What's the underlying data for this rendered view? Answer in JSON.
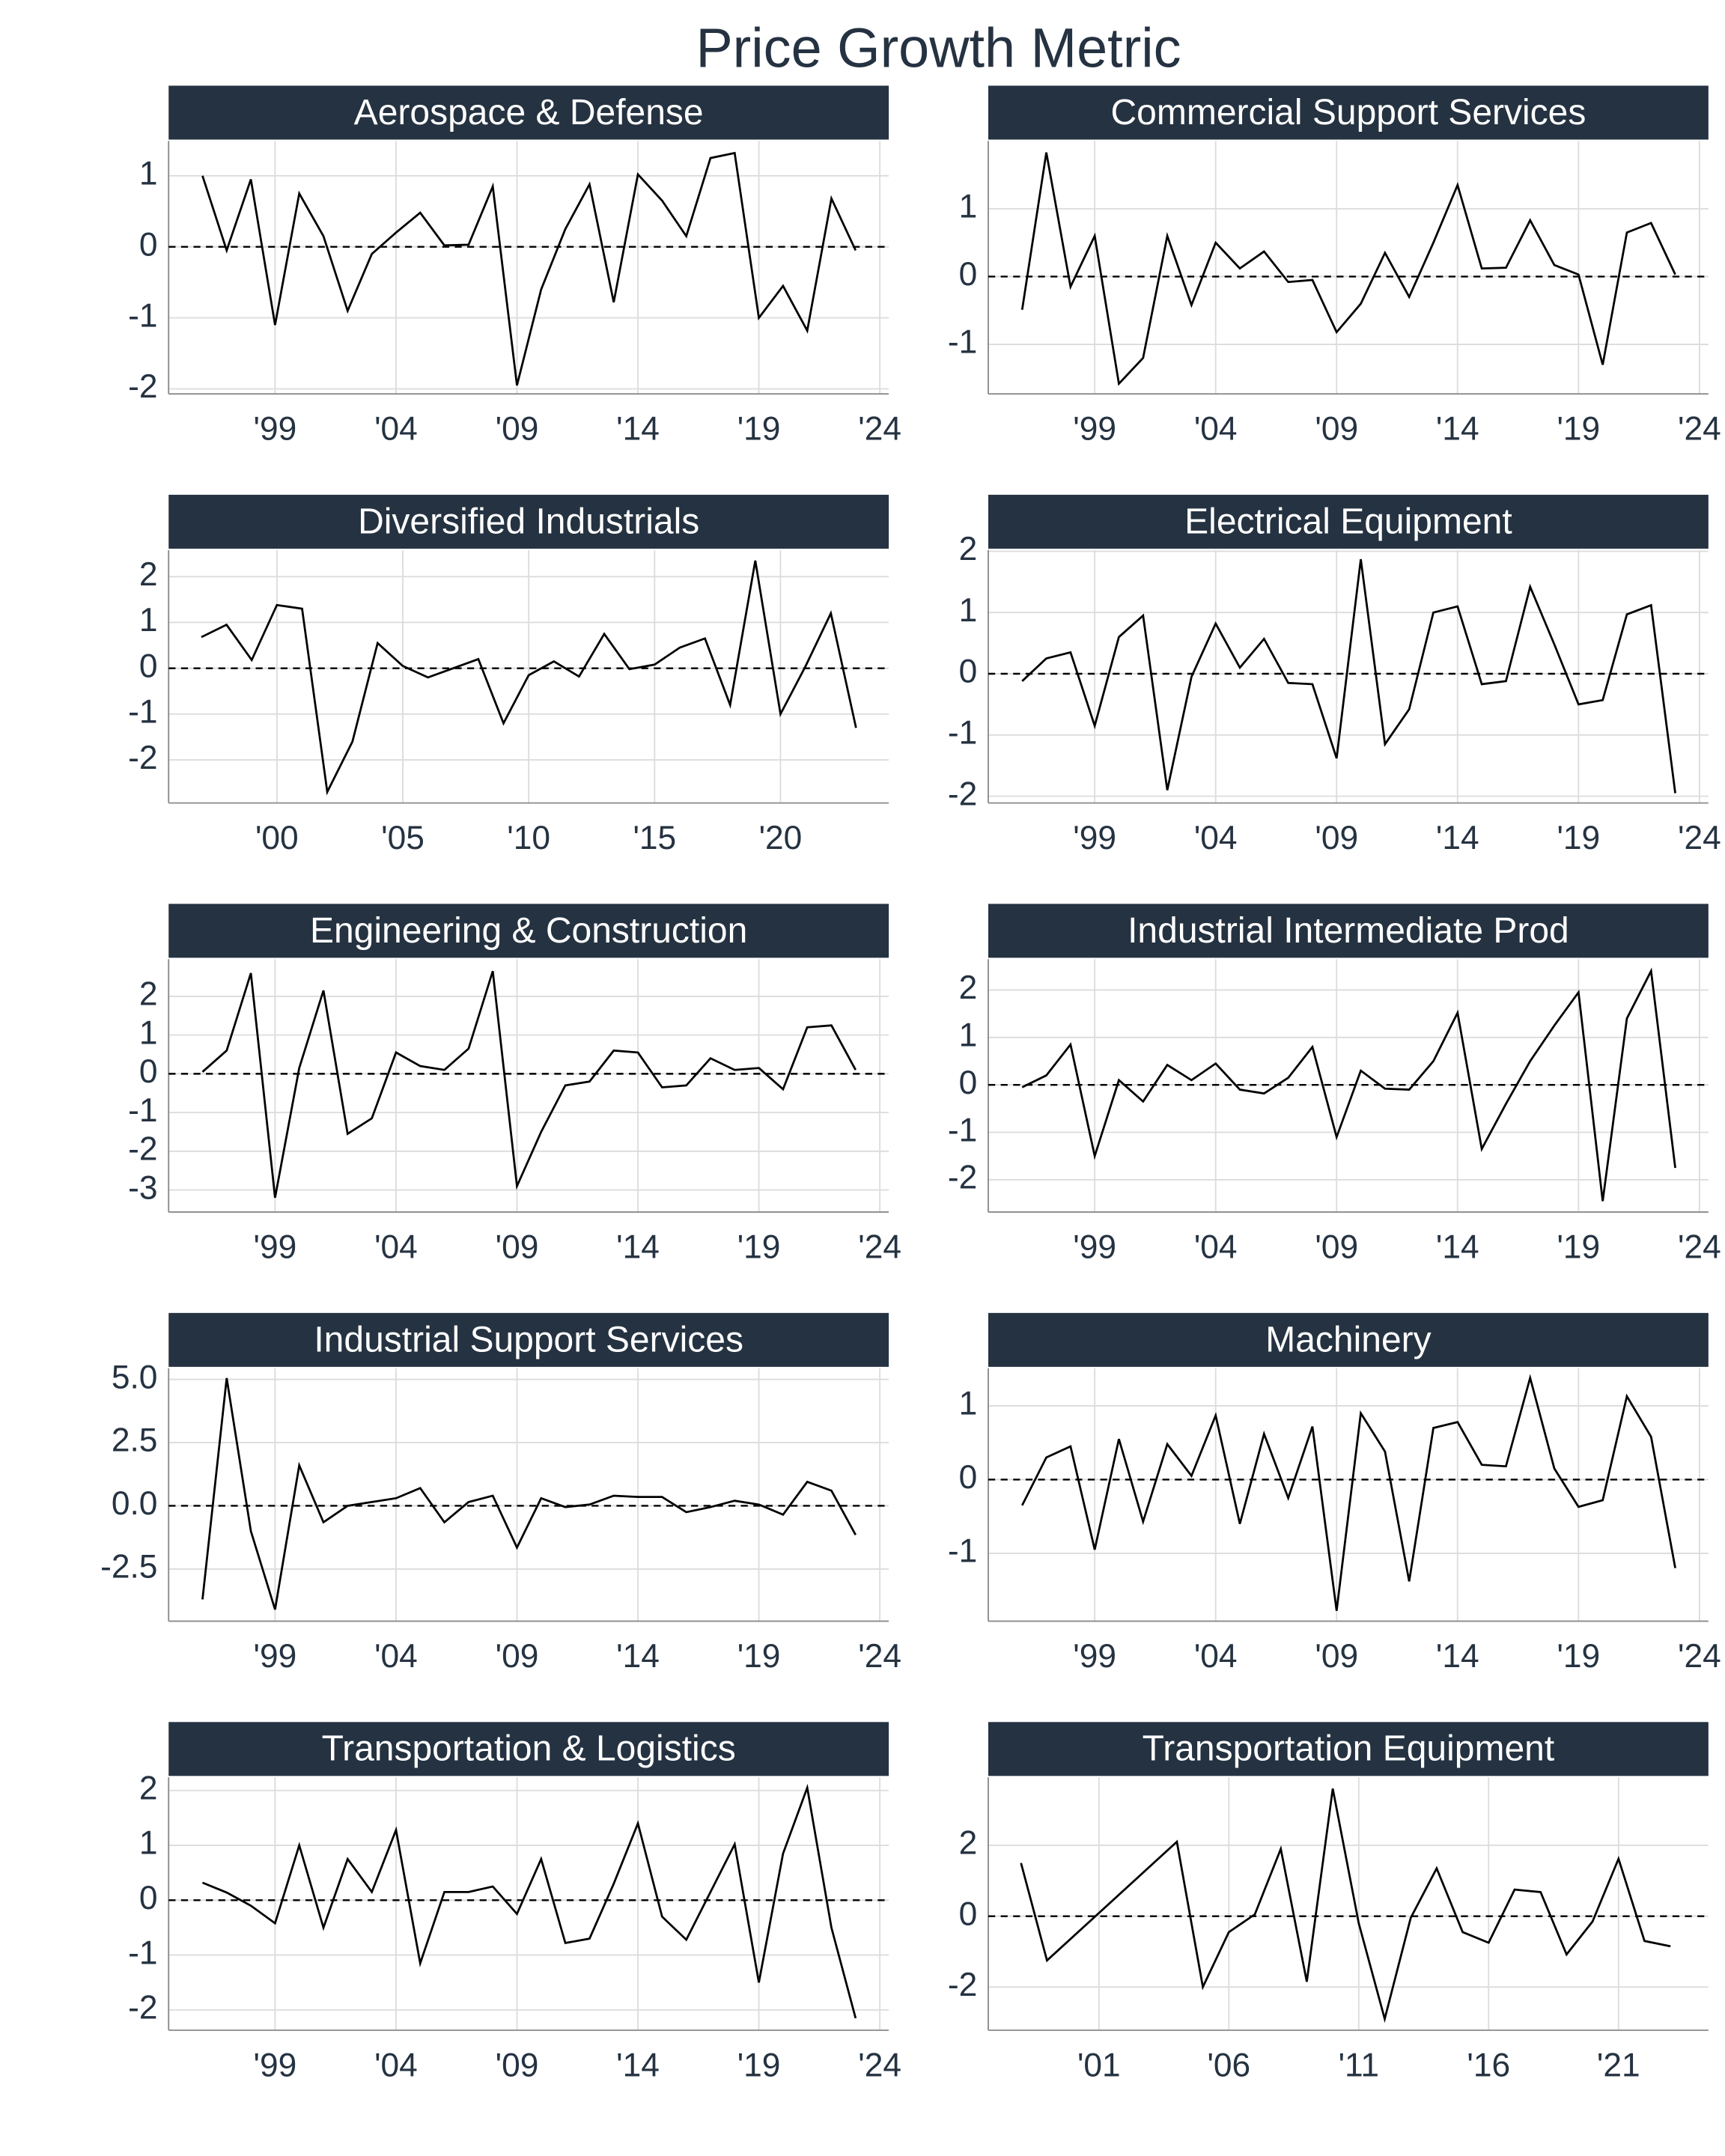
{
  "title": "Price Growth Metric",
  "chart_data": [
    {
      "type": "line",
      "title": "Aerospace & Defense",
      "color": "#000000",
      "hline": 0,
      "x": [
        1996,
        1997,
        1998,
        1999,
        2000,
        2001,
        2002,
        2003,
        2004,
        2005,
        2006,
        2007,
        2008,
        2009,
        2010,
        2011,
        2012,
        2013,
        2014,
        2015,
        2016,
        2017,
        2018,
        2019,
        2020,
        2021,
        2022,
        2023
      ],
      "values": [
        1,
        -0.05,
        0.95,
        -1.1,
        0.75,
        0.15,
        -0.9,
        -0.1,
        0.2,
        0.48,
        0.02,
        0.03,
        0.85,
        -1.95,
        -0.6,
        0.25,
        0.88,
        -0.78,
        1.02,
        0.65,
        0.15,
        1.25,
        1.32,
        -1.0,
        -0.55,
        -1.18,
        0.68,
        -0.05
      ],
      "xlim": [
        1994.6,
        2024.37
      ],
      "ylim": [
        -2.07,
        1.49
      ],
      "xticks": [
        {
          "value": 1999,
          "label": "'99"
        },
        {
          "value": 2004,
          "label": "'04"
        },
        {
          "value": 2009,
          "label": "'09"
        },
        {
          "value": 2014,
          "label": "'14"
        },
        {
          "value": 2019,
          "label": "'19"
        },
        {
          "value": 2024,
          "label": "'24"
        }
      ],
      "yticks": [
        -2,
        -1,
        0,
        1
      ]
    },
    {
      "type": "line",
      "title": "Commercial Support Services",
      "color": "#000000",
      "hline": 0,
      "x": [
        1996,
        1997,
        1998,
        1999,
        2000,
        2001,
        2002,
        2003,
        2004,
        2005,
        2006,
        2007,
        2008,
        2009,
        2010,
        2011,
        2012,
        2013,
        2014,
        2015,
        2016,
        2017,
        2018,
        2019,
        2020,
        2021,
        2022,
        2023
      ],
      "values": [
        -0.49,
        1.83,
        -0.15,
        0.6,
        -1.58,
        -1.2,
        0.6,
        -0.42,
        0.5,
        0.12,
        0.37,
        -0.08,
        -0.05,
        -0.82,
        -0.4,
        0.35,
        -0.3,
        0.5,
        1.35,
        0.12,
        0.13,
        0.83,
        0.17,
        0.03,
        -1.3,
        0.65,
        0.79,
        0.03
      ],
      "xlim": [
        1994.6,
        2024.37
      ],
      "ylim": [
        -1.73,
        2.0
      ],
      "xticks": [
        {
          "value": 1999,
          "label": "'99"
        },
        {
          "value": 2004,
          "label": "'04"
        },
        {
          "value": 2009,
          "label": "'09"
        },
        {
          "value": 2014,
          "label": "'14"
        },
        {
          "value": 2019,
          "label": "'19"
        },
        {
          "value": 2024,
          "label": "'24"
        }
      ],
      "yticks": [
        -1,
        0,
        1
      ]
    },
    {
      "type": "line",
      "title": "Diversified Industrials",
      "color": "#000000",
      "hline": 0,
      "x": [
        1997,
        1998,
        1999,
        2000,
        2001,
        2002,
        2003,
        2004,
        2005,
        2006,
        2007,
        2008,
        2009,
        2010,
        2011,
        2012,
        2013,
        2014,
        2015,
        2016,
        2017,
        2018,
        2019,
        2020,
        2021,
        2022,
        2023
      ],
      "values": [
        0.68,
        0.95,
        0.18,
        1.38,
        1.3,
        -2.7,
        -1.6,
        0.55,
        0.05,
        -0.2,
        0.0,
        0.2,
        -1.2,
        -0.15,
        0.15,
        -0.18,
        0.75,
        -0.02,
        0.08,
        0.45,
        0.65,
        -0.8,
        2.35,
        -1.0,
        0.05,
        1.2,
        -1.3
      ],
      "xlim": [
        1995.7,
        2024.3
      ],
      "ylim": [
        -2.94,
        2.58
      ],
      "xticks": [
        {
          "value": 2000,
          "label": "'00"
        },
        {
          "value": 2005,
          "label": "'05"
        },
        {
          "value": 2010,
          "label": "'10"
        },
        {
          "value": 2015,
          "label": "'15"
        },
        {
          "value": 2020,
          "label": "'20"
        }
      ],
      "yticks": [
        -2,
        -1,
        0,
        1,
        2
      ]
    },
    {
      "type": "line",
      "title": "Electrical Equipment",
      "color": "#000000",
      "hline": 0,
      "x": [
        1996,
        1997,
        1998,
        1999,
        2000,
        2001,
        2002,
        2003,
        2004,
        2005,
        2006,
        2007,
        2008,
        2009,
        2010,
        2011,
        2012,
        2013,
        2014,
        2015,
        2016,
        2017,
        2018,
        2019,
        2020,
        2021,
        2022,
        2023
      ],
      "values": [
        -0.12,
        0.25,
        0.35,
        -0.85,
        0.6,
        0.95,
        -1.9,
        -0.05,
        0.82,
        0.1,
        0.57,
        -0.15,
        -0.17,
        -1.38,
        1.87,
        -1.15,
        -0.58,
        1.0,
        1.1,
        -0.17,
        -0.12,
        1.42,
        0.48,
        -0.5,
        -0.43,
        0.97,
        1.12,
        -1.95
      ],
      "xlim": [
        1994.6,
        2024.37
      ],
      "ylim": [
        -2.11,
        2.02
      ],
      "xticks": [
        {
          "value": 1999,
          "label": "'99"
        },
        {
          "value": 2004,
          "label": "'04"
        },
        {
          "value": 2009,
          "label": "'09"
        },
        {
          "value": 2014,
          "label": "'14"
        },
        {
          "value": 2019,
          "label": "'19"
        },
        {
          "value": 2024,
          "label": "'24"
        }
      ],
      "yticks": [
        -2,
        -1,
        0,
        1,
        2
      ]
    },
    {
      "type": "line",
      "title": "Engineering & Construction",
      "color": "#000000",
      "hline": 0,
      "x": [
        1996,
        1997,
        1998,
        1999,
        2000,
        2001,
        2002,
        2003,
        2004,
        2005,
        2006,
        2007,
        2008,
        2009,
        2010,
        2011,
        2012,
        2013,
        2014,
        2015,
        2016,
        2017,
        2018,
        2019,
        2020,
        2021,
        2022,
        2023
      ],
      "values": [
        0.05,
        0.6,
        2.6,
        -3.2,
        0.15,
        2.15,
        -1.55,
        -1.15,
        0.55,
        0.2,
        0.1,
        0.65,
        2.65,
        -2.9,
        -1.5,
        -0.3,
        -0.2,
        0.6,
        0.55,
        -0.35,
        -0.3,
        0.4,
        0.1,
        0.15,
        -0.4,
        1.2,
        1.25,
        0.1
      ],
      "xlim": [
        1994.6,
        2024.37
      ],
      "ylim": [
        -3.57,
        2.96
      ],
      "xticks": [
        {
          "value": 1999,
          "label": "'99"
        },
        {
          "value": 2004,
          "label": "'04"
        },
        {
          "value": 2009,
          "label": "'09"
        },
        {
          "value": 2014,
          "label": "'14"
        },
        {
          "value": 2019,
          "label": "'19"
        },
        {
          "value": 2024,
          "label": "'24"
        }
      ],
      "yticks": [
        -3,
        -2,
        -1,
        0,
        1,
        2
      ]
    },
    {
      "type": "line",
      "title": "Industrial Intermediate Prod",
      "color": "#000000",
      "hline": 0,
      "x": [
        1996,
        1997,
        1998,
        1999,
        2000,
        2001,
        2002,
        2003,
        2004,
        2005,
        2006,
        2007,
        2008,
        2009,
        2010,
        2011,
        2012,
        2013,
        2014,
        2015,
        2016,
        2017,
        2018,
        2019,
        2020,
        2021,
        2022,
        2023
      ],
      "values": [
        -0.05,
        0.2,
        0.85,
        -1.5,
        0.1,
        -0.35,
        0.42,
        0.1,
        0.45,
        -0.1,
        -0.18,
        0.15,
        0.8,
        -1.1,
        0.3,
        -0.08,
        -0.1,
        0.5,
        1.52,
        -1.35,
        -0.4,
        0.5,
        1.25,
        1.95,
        -2.45,
        1.4,
        2.4,
        -1.75
      ],
      "xlim": [
        1994.6,
        2024.37
      ],
      "ylim": [
        -2.68,
        2.65
      ],
      "xticks": [
        {
          "value": 1999,
          "label": "'99"
        },
        {
          "value": 2004,
          "label": "'04"
        },
        {
          "value": 2009,
          "label": "'09"
        },
        {
          "value": 2014,
          "label": "'14"
        },
        {
          "value": 2019,
          "label": "'19"
        },
        {
          "value": 2024,
          "label": "'24"
        }
      ],
      "yticks": [
        -2,
        -1,
        0,
        1,
        2
      ]
    },
    {
      "type": "line",
      "title": "Industrial Support Services",
      "color": "#000000",
      "hline": 0,
      "x": [
        1996,
        1997,
        1998,
        1999,
        2000,
        2001,
        2002,
        2003,
        2004,
        2005,
        2006,
        2007,
        2008,
        2009,
        2010,
        2011,
        2012,
        2013,
        2014,
        2015,
        2016,
        2017,
        2018,
        2019,
        2020,
        2021,
        2022,
        2023
      ],
      "values": [
        -3.7,
        5.05,
        -1.0,
        -4.1,
        1.6,
        -0.65,
        0.0,
        0.15,
        0.3,
        0.7,
        -0.65,
        0.15,
        0.4,
        -1.65,
        0.3,
        -0.05,
        0.05,
        0.4,
        0.35,
        0.35,
        -0.25,
        -0.05,
        0.2,
        0.05,
        -0.35,
        0.95,
        0.6,
        -1.15
      ],
      "xlim": [
        1994.6,
        2024.37
      ],
      "ylim": [
        -4.56,
        5.44
      ],
      "xticks": [
        {
          "value": 1999,
          "label": "'99"
        },
        {
          "value": 2004,
          "label": "'04"
        },
        {
          "value": 2009,
          "label": "'09"
        },
        {
          "value": 2014,
          "label": "'14"
        },
        {
          "value": 2019,
          "label": "'19"
        },
        {
          "value": 2024,
          "label": "'24"
        }
      ],
      "yticks": [
        {
          "value": -2.5,
          "label": "-2.5"
        },
        {
          "value": 0,
          "label": "0.0"
        },
        {
          "value": 2.5,
          "label": "2.5"
        },
        {
          "value": 5,
          "label": "5.0"
        }
      ]
    },
    {
      "type": "line",
      "title": "Machinery",
      "color": "#000000",
      "hline": 0,
      "x": [
        1996,
        1997,
        1998,
        1999,
        2000,
        2001,
        2002,
        2003,
        2004,
        2005,
        2006,
        2007,
        2008,
        2009,
        2010,
        2011,
        2012,
        2013,
        2014,
        2015,
        2016,
        2017,
        2018,
        2019,
        2020,
        2021,
        2022,
        2023
      ],
      "values": [
        -0.35,
        0.3,
        0.45,
        -0.95,
        0.55,
        -0.57,
        0.48,
        0.05,
        0.87,
        -0.6,
        0.62,
        -0.25,
        0.72,
        -1.78,
        0.9,
        0.38,
        -1.38,
        0.7,
        0.78,
        0.2,
        0.18,
        1.38,
        0.15,
        -0.37,
        -0.28,
        1.13,
        0.58,
        -1.2
      ],
      "xlim": [
        1994.6,
        2024.37
      ],
      "ylim": [
        -1.92,
        1.51
      ],
      "xticks": [
        {
          "value": 1999,
          "label": "'99"
        },
        {
          "value": 2004,
          "label": "'04"
        },
        {
          "value": 2009,
          "label": "'09"
        },
        {
          "value": 2014,
          "label": "'14"
        },
        {
          "value": 2019,
          "label": "'19"
        },
        {
          "value": 2024,
          "label": "'24"
        }
      ],
      "yticks": [
        -1,
        0,
        1
      ]
    },
    {
      "type": "line",
      "title": "Transportation & Logistics",
      "color": "#000000",
      "hline": 0,
      "x": [
        1996,
        1997,
        1998,
        1999,
        2000,
        2001,
        2002,
        2003,
        2004,
        2005,
        2006,
        2007,
        2008,
        2009,
        2010,
        2011,
        2012,
        2013,
        2014,
        2015,
        2016,
        2017,
        2018,
        2019,
        2020,
        2021,
        2022,
        2023
      ],
      "values": [
        0.32,
        0.14,
        -0.1,
        -0.42,
        1.0,
        -0.5,
        0.75,
        0.15,
        1.28,
        -1.15,
        0.15,
        0.15,
        0.25,
        -0.25,
        0.75,
        -0.78,
        -0.7,
        0.3,
        1.4,
        -0.3,
        -0.72,
        0.15,
        1.02,
        -1.5,
        0.85,
        2.05,
        -0.5,
        -2.15
      ],
      "xlim": [
        1994.6,
        2024.37
      ],
      "ylim": [
        -2.37,
        2.24
      ],
      "xticks": [
        {
          "value": 1999,
          "label": "'99"
        },
        {
          "value": 2004,
          "label": "'04"
        },
        {
          "value": 2009,
          "label": "'09"
        },
        {
          "value": 2014,
          "label": "'14"
        },
        {
          "value": 2019,
          "label": "'19"
        },
        {
          "value": 2024,
          "label": "'24"
        }
      ],
      "yticks": [
        -2,
        -1,
        0,
        1,
        2
      ]
    },
    {
      "type": "line",
      "title": "Transportation Equipment",
      "color": "#000000",
      "hline": 0,
      "x": [
        1998,
        1999,
        2004,
        2005,
        2006,
        2007,
        2008,
        2009,
        2010,
        2011,
        2012,
        2013,
        2014,
        2015,
        2016,
        2017,
        2018,
        2019,
        2020,
        2021,
        2022,
        2023
      ],
      "values": [
        1.5,
        -1.25,
        2.1,
        -2.0,
        -0.45,
        0.05,
        1.9,
        -1.85,
        3.6,
        -0.2,
        -2.9,
        -0.05,
        1.35,
        -0.45,
        -0.75,
        0.75,
        0.68,
        -1.08,
        -0.15,
        1.62,
        -0.7,
        -0.85
      ],
      "xlim": [
        1996.74,
        2024.46
      ],
      "ylim": [
        -3.22,
        3.92
      ],
      "xticks": [
        {
          "value": 2001,
          "label": "'01"
        },
        {
          "value": 2006,
          "label": "'06"
        },
        {
          "value": 2011,
          "label": "'11"
        },
        {
          "value": 2016,
          "label": "'16"
        },
        {
          "value": 2021,
          "label": "'21"
        }
      ],
      "yticks": [
        -2,
        0,
        2
      ]
    }
  ]
}
